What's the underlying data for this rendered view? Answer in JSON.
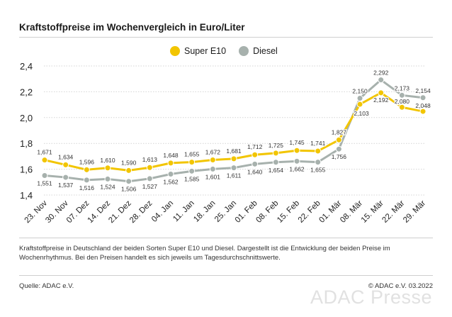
{
  "title": "Kraftstoffpreise im Wochenvergleich in Euro/Liter",
  "legend": [
    {
      "name": "Super E10",
      "color": "#f2c500"
    },
    {
      "name": "Diesel",
      "color": "#a7b1ad"
    }
  ],
  "caption": "Kraftstoffpreise in Deutschland der beiden Sorten Super E10 und Diesel. Dargestellt ist die Entwicklung der beiden Preise im Wochenrhythmus. Bei den Preisen handelt es sich jeweils um Tagesdurchschnittswerte.",
  "source": "Quelle: ADAC e.V.",
  "copyright": "© ADAC e.V. 03.2022",
  "watermark": "ADAC Presse",
  "chart_data": {
    "type": "line",
    "title": "Kraftstoffpreise im Wochenvergleich in Euro/Liter",
    "categories": [
      "23. Nov",
      "30. Nov",
      "07. Dez",
      "14. Dez",
      "21. Dez",
      "28. Dez",
      "04. Jan",
      "11. Jan",
      "18. Jan",
      "25. Jan",
      "01. Feb",
      "08. Feb",
      "15. Feb",
      "22. Feb",
      "01. Mär",
      "08. Mär",
      "15. Mär",
      "22. Mär",
      "29. Mär"
    ],
    "series": [
      {
        "name": "Super E10",
        "color": "#f2c500",
        "values": [
          1.671,
          1.634,
          1.596,
          1.61,
          1.59,
          1.613,
          1.648,
          1.655,
          1.672,
          1.681,
          1.712,
          1.725,
          1.745,
          1.741,
          1.827,
          2.103,
          2.192,
          2.08,
          2.048
        ],
        "labels": [
          "1,671",
          "1,634",
          "1,596",
          "1,610",
          "1,590",
          "1,613",
          "1,648",
          "1,655",
          "1,672",
          "1,681",
          "1,712",
          "1,725",
          "1,745",
          "1,741",
          "1,827",
          "2,103",
          "2,192",
          "2,080",
          "2,048"
        ]
      },
      {
        "name": "Diesel",
        "color": "#a7b1ad",
        "values": [
          1.551,
          1.537,
          1.516,
          1.524,
          1.506,
          1.527,
          1.562,
          1.585,
          1.601,
          1.611,
          1.64,
          1.654,
          1.662,
          1.655,
          1.756,
          2.15,
          2.292,
          2.173,
          2.154
        ],
        "labels": [
          "1,551",
          "1,537",
          "1,516",
          "1,524",
          "1,506",
          "1,527",
          "1,562",
          "1,585",
          "1,601",
          "1,611",
          "1,640",
          "1,654",
          "1,662",
          "1,655",
          "1,756",
          "2,150",
          "2,292",
          "2,173",
          "2,154"
        ]
      }
    ],
    "yticks": [
      1.4,
      1.6,
      1.8,
      2.0,
      2.2,
      2.4
    ],
    "ytick_labels": [
      "1,4",
      "1,6",
      "1,8",
      "2,0",
      "2,2",
      "2,4"
    ],
    "ylim": [
      1.4,
      2.4
    ],
    "grid": true,
    "legend_position": "top-center"
  }
}
